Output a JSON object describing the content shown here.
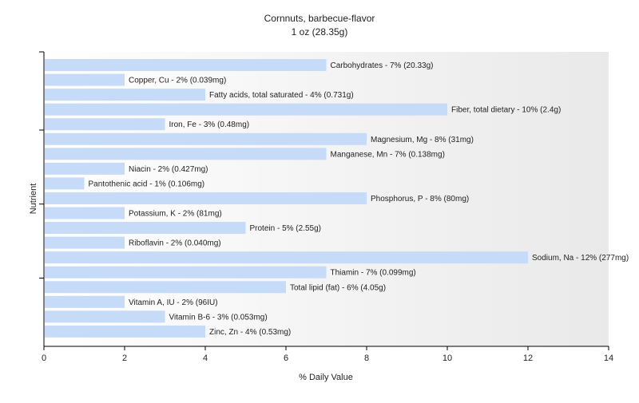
{
  "chart_data": {
    "type": "bar",
    "orientation": "horizontal",
    "title": "Cornnuts, barbecue-flavor",
    "subtitle": "1 oz (28.35g)",
    "xlabel": "% Daily Value",
    "ylabel": "Nutrient",
    "xlim": [
      0,
      14
    ],
    "xticks": [
      0,
      2,
      4,
      6,
      8,
      10,
      12,
      14
    ],
    "grid": false,
    "legend": "none",
    "colors": {
      "bar": "#c6dbf7",
      "background_gradient_end": "#e9e9e9",
      "axis": "#000000"
    },
    "categories": [
      "Carbohydrates",
      "Copper, Cu",
      "Fatty acids, total saturated",
      "Fiber, total dietary",
      "Iron, Fe",
      "Magnesium, Mg",
      "Manganese, Mn",
      "Niacin",
      "Pantothenic acid",
      "Phosphorus, P",
      "Potassium, K",
      "Protein",
      "Riboflavin",
      "Sodium, Na",
      "Thiamin",
      "Total lipid (fat)",
      "Vitamin A, IU",
      "Vitamin B-6",
      "Zinc, Zn"
    ],
    "values": [
      7,
      2,
      4,
      10,
      3,
      8,
      7,
      2,
      1,
      8,
      2,
      5,
      2,
      12,
      7,
      6,
      2,
      3,
      4
    ],
    "labels": [
      "Carbohydrates - 7% (20.33g)",
      "Copper, Cu - 2% (0.039mg)",
      "Fatty acids, total saturated - 4% (0.731g)",
      "Fiber, total dietary - 10% (2.4g)",
      "Iron, Fe - 3% (0.48mg)",
      "Magnesium, Mg - 8% (31mg)",
      "Manganese, Mn - 7% (0.138mg)",
      "Niacin - 2% (0.427mg)",
      "Pantothenic acid - 1% (0.106mg)",
      "Phosphorus, P - 8% (80mg)",
      "Potassium, K - 2% (81mg)",
      "Protein - 5% (2.55g)",
      "Riboflavin - 2% (0.040mg)",
      "Sodium, Na - 12% (277mg)",
      "Thiamin - 7% (0.099mg)",
      "Total lipid (fat) - 6% (4.05g)",
      "Vitamin A, IU - 2% (96IU)",
      "Vitamin B-6 - 3% (0.053mg)",
      "Zinc, Zn - 4% (0.53mg)"
    ]
  }
}
